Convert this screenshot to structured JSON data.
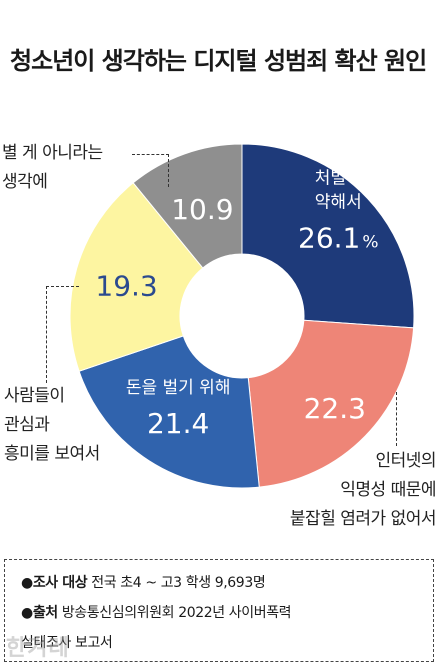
{
  "title": "청소년이 생각하는 디지털 성범죄 확산 원인",
  "chart_data": {
    "type": "pie",
    "title": "청소년이 생각하는 디지털 성범죄 확산 원인",
    "slices": [
      {
        "label_lines": [
          "처벌이",
          "약해서"
        ],
        "value": 26.1,
        "value_text": "26.1",
        "unit": "%",
        "color": "#1e3a7a",
        "text_color": "#ffffff",
        "label_position": "inside"
      },
      {
        "label_lines": [
          "인터넷의",
          "익명성 때문에",
          "붙잡힐 염려가 없어서"
        ],
        "value": 22.3,
        "value_text": "22.3",
        "color": "#ee8577",
        "text_color": "#ffffff",
        "label_position": "outside"
      },
      {
        "label_lines": [
          "돈을 벌기 위해"
        ],
        "value": 21.4,
        "value_text": "21.4",
        "color": "#3063ad",
        "text_color": "#ffffff",
        "label_position": "inside"
      },
      {
        "label_lines": [
          "사람들이",
          "관심과",
          "흥미를 보여서"
        ],
        "value": 19.3,
        "value_text": "19.3",
        "color": "#fdf5a1",
        "text_color": "#2b4a8f",
        "label_position": "outside"
      },
      {
        "label_lines": [
          "별 게 아니라는",
          "생각에"
        ],
        "value": 10.9,
        "value_text": "10.9",
        "color": "#8f8f8f",
        "text_color": "#ffffff",
        "label_position": "outside"
      }
    ]
  },
  "footer": {
    "survey_label": "●조사 대상",
    "survey_text": " 전국 초4 ~ 고3 학생 9,693명",
    "source_label": "●출처",
    "source_text": " 방송통신심의위원회 2022년 사이버폭력",
    "source_text_2": "실태조사 보고서"
  },
  "watermark": "한겨레"
}
